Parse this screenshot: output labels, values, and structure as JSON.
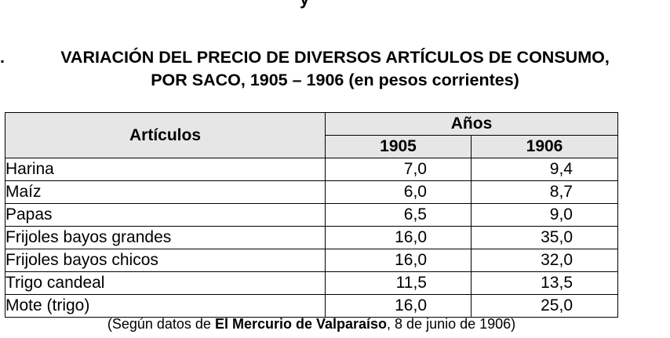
{
  "top_fragment": "y",
  "title": {
    "number": ".",
    "line1": "VARIACIÓN DEL PRECIO DE DIVERSOS ARTÍCULOS DE CONSUMO,",
    "line2": "POR SACO, 1905 – 1906 (en pesos corrientes)"
  },
  "table": {
    "header_articulos": "Artículos",
    "header_anos": "Años",
    "year1": "1905",
    "year2": "1906",
    "rows": [
      {
        "articulo": "Harina",
        "v1905": "7,0",
        "v1906": "9,4"
      },
      {
        "articulo": "Maíz",
        "v1905": "6,0",
        "v1906": "8,7"
      },
      {
        "articulo": "Papas",
        "v1905": "6,5",
        "v1906": "9,0"
      },
      {
        "articulo": "Frijoles bayos grandes",
        "v1905": "16,0",
        "v1906": "35,0"
      },
      {
        "articulo": "Frijoles bayos chicos",
        "v1905": "16,0",
        "v1906": "32,0"
      },
      {
        "articulo": "Trigo candeal",
        "v1905": "11,5",
        "v1906": "13,5"
      },
      {
        "articulo": "Mote (trigo)",
        "v1905": "16,0",
        "v1906": "25,0"
      }
    ]
  },
  "source": {
    "prefix": "(Según datos de ",
    "publication": "El Mercurio de Valparaíso",
    "suffix": ", 8 de junio de 1906)"
  }
}
